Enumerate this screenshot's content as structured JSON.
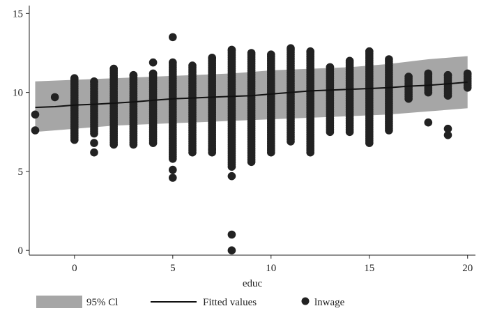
{
  "chart_data": {
    "type": "scatter",
    "title": "",
    "xlabel": "educ",
    "ylabel": "",
    "xlim": [
      -2.3,
      20.4
    ],
    "ylim": [
      -0.3,
      15.5
    ],
    "xticks": [
      0,
      5,
      10,
      15,
      20
    ],
    "yticks": [
      0,
      5,
      10,
      15
    ],
    "grid": false,
    "legend": {
      "position": "bottom",
      "entries": [
        "95% Cl",
        "Fitted values",
        "lnwage"
      ]
    },
    "colors": {
      "band": "#a6a6a6",
      "line": "#111111",
      "points": "#222222"
    },
    "series": [
      {
        "name": "95% Cl",
        "kind": "band",
        "x": [
          -2,
          0,
          2,
          4,
          6,
          8,
          10,
          12,
          14,
          16,
          18,
          20
        ],
        "lower": [
          7.5,
          7.7,
          7.9,
          8.0,
          8.1,
          8.2,
          8.3,
          8.4,
          8.5,
          8.6,
          8.8,
          9.0
        ],
        "upper": [
          10.7,
          10.8,
          10.9,
          11.0,
          11.1,
          11.2,
          11.4,
          11.5,
          11.6,
          11.8,
          12.1,
          12.3
        ]
      },
      {
        "name": "Fitted values",
        "kind": "line",
        "x": [
          -2,
          -1,
          0,
          1,
          2,
          3,
          4,
          5,
          6,
          7,
          8,
          9,
          10,
          11,
          12,
          13,
          14,
          15,
          16,
          17,
          18,
          19,
          20
        ],
        "y": [
          9.05,
          9.1,
          9.2,
          9.25,
          9.32,
          9.4,
          9.5,
          9.6,
          9.65,
          9.7,
          9.75,
          9.8,
          9.9,
          10.0,
          10.1,
          10.15,
          10.2,
          10.25,
          10.3,
          10.4,
          10.45,
          10.55,
          10.65
        ]
      },
      {
        "name": "lnwage",
        "kind": "scatter",
        "columns": [
          {
            "x": -2,
            "min": 7.6,
            "max": 7.6,
            "extra": [
              8.6
            ]
          },
          {
            "x": -1,
            "min": 9.7,
            "max": 9.7,
            "extra": []
          },
          {
            "x": 0,
            "min": 7.0,
            "max": 10.9,
            "extra": []
          },
          {
            "x": 1,
            "min": 7.4,
            "max": 10.7,
            "extra": [
              6.8,
              6.2
            ]
          },
          {
            "x": 2,
            "min": 6.7,
            "max": 11.5,
            "extra": []
          },
          {
            "x": 3,
            "min": 6.7,
            "max": 11.1,
            "extra": []
          },
          {
            "x": 4,
            "min": 6.8,
            "max": 11.2,
            "extra": [
              11.9
            ]
          },
          {
            "x": 5,
            "min": 5.8,
            "max": 11.9,
            "extra": [
              13.5,
              5.1,
              4.6
            ]
          },
          {
            "x": 6,
            "min": 6.2,
            "max": 11.7,
            "extra": []
          },
          {
            "x": 7,
            "min": 6.2,
            "max": 12.2,
            "extra": [
              6.4
            ]
          },
          {
            "x": 8,
            "min": 5.3,
            "max": 12.7,
            "extra": [
              4.7,
              1.0,
              0.0
            ]
          },
          {
            "x": 9,
            "min": 5.6,
            "max": 12.5,
            "extra": []
          },
          {
            "x": 10,
            "min": 6.2,
            "max": 12.4,
            "extra": []
          },
          {
            "x": 11,
            "min": 6.9,
            "max": 12.8,
            "extra": []
          },
          {
            "x": 12,
            "min": 6.2,
            "max": 12.6,
            "extra": []
          },
          {
            "x": 13,
            "min": 7.5,
            "max": 11.6,
            "extra": []
          },
          {
            "x": 14,
            "min": 7.5,
            "max": 12.0,
            "extra": []
          },
          {
            "x": 15,
            "min": 6.8,
            "max": 12.6,
            "extra": []
          },
          {
            "x": 16,
            "min": 7.6,
            "max": 12.1,
            "extra": []
          },
          {
            "x": 17,
            "min": 9.6,
            "max": 11.0,
            "extra": []
          },
          {
            "x": 18,
            "min": 10.0,
            "max": 11.2,
            "extra": [
              8.1
            ]
          },
          {
            "x": 19,
            "min": 9.8,
            "max": 11.1,
            "extra": [
              7.7,
              7.3
            ]
          },
          {
            "x": 20,
            "min": 10.3,
            "max": 11.2,
            "extra": []
          }
        ]
      }
    ]
  }
}
